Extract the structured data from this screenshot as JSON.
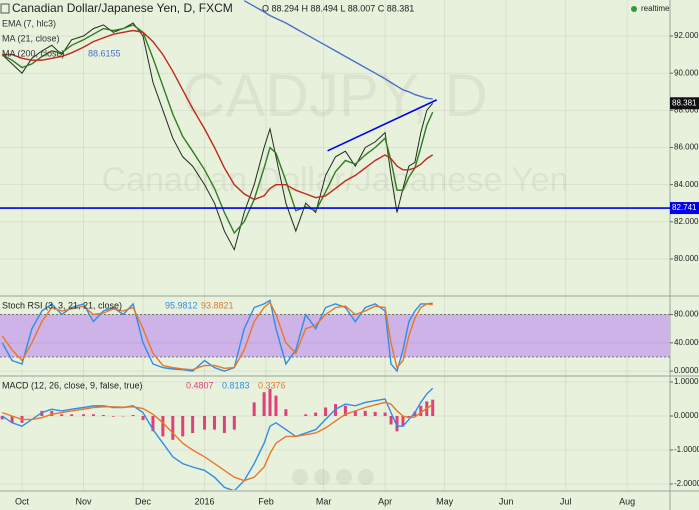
{
  "chart_data": [
    {
      "type": "line",
      "title": "Canadian Dollar/Japanese Yen, D, FXCM",
      "ohlc": "O 88.294 H 88.494 L 88.007 C 88.381",
      "status": "realtime",
      "watermark": [
        "CADJPY, D",
        "Canadian Dollar/Japanese Yen"
      ],
      "x": [
        -10,
        -5,
        0,
        5,
        10,
        15,
        20,
        25,
        31,
        36,
        41,
        46,
        51,
        56,
        61,
        66,
        71,
        76,
        81,
        86,
        92,
        97,
        102,
        107,
        112,
        117,
        122,
        125,
        128,
        133,
        138,
        143,
        148,
        153,
        158,
        163,
        168,
        173,
        178,
        183,
        186,
        189,
        192,
        195,
        198,
        201,
        204,
        207
      ],
      "ylim": [
        78.06,
        93.94
      ],
      "yticks": [
        {
          "value": 80,
          "label": "80.000"
        },
        {
          "value": 82,
          "label": "82.000"
        },
        {
          "value": 84,
          "label": "84.000"
        },
        {
          "value": 86,
          "label": "86.000"
        },
        {
          "value": 88,
          "label": "88.000"
        },
        {
          "value": 90,
          "label": "90.000"
        },
        {
          "value": 92,
          "label": "92.000"
        }
      ],
      "grid": true,
      "series": [
        {
          "color": "#1d2e1d",
          "values": [
            91.0,
            90.5,
            90.0,
            90.8,
            91.2,
            91.5,
            91.0,
            91.8,
            92.0,
            92.4,
            92.6,
            92.2,
            92.4,
            92.7,
            92.0,
            89.5,
            88.0,
            86.5,
            85.5,
            85.0,
            84.0,
            83.0,
            81.5,
            80.5,
            82.5,
            84.0,
            86.0,
            87.0,
            85.5,
            83.0,
            81.5,
            83.0,
            82.5,
            84.5,
            85.5,
            85.8,
            85.0,
            86.0,
            86.3,
            86.8,
            84.5,
            82.5,
            83.8,
            85.0,
            85.2,
            86.8,
            88.0,
            88.381
          ]
        },
        {
          "name": "EMA (7, hlc3)",
          "color": "#2f7d1f",
          "values": [
            91.0,
            90.7,
            90.3,
            90.5,
            90.9,
            91.2,
            91.1,
            91.5,
            91.8,
            92.1,
            92.4,
            92.3,
            92.4,
            92.6,
            92.2,
            90.8,
            89.3,
            87.8,
            86.6,
            85.8,
            84.8,
            83.8,
            82.5,
            81.4,
            82.0,
            83.2,
            84.9,
            86.0,
            85.7,
            84.2,
            82.6,
            82.8,
            82.6,
            83.6,
            84.7,
            85.3,
            85.1,
            85.6,
            86.0,
            86.5,
            85.3,
            83.7,
            83.7,
            84.4,
            84.9,
            86.0,
            87.2,
            87.9
          ]
        },
        {
          "name": "MA (21, close)",
          "color": "#c0291b",
          "values": [
            91.0,
            91.0,
            90.8,
            90.7,
            90.7,
            90.8,
            90.9,
            91.1,
            91.4,
            91.7,
            91.9,
            92.1,
            92.2,
            92.3,
            92.2,
            91.7,
            91.0,
            90.1,
            89.1,
            88.1,
            87.0,
            86.0,
            84.9,
            84.0,
            83.5,
            83.2,
            83.4,
            83.8,
            84.0,
            84.0,
            83.7,
            83.5,
            83.3,
            83.4,
            83.8,
            84.2,
            84.5,
            84.9,
            85.3,
            85.6,
            85.4,
            85.0,
            84.8,
            84.8,
            84.9,
            85.1,
            85.4,
            85.6
          ]
        },
        {
          "name": "MA (200, close)",
          "color": "#4a6fc9",
          "legend_value": "88.6155",
          "values": [
            null,
            null,
            null,
            null,
            null,
            null,
            null,
            null,
            null,
            null,
            null,
            null,
            null,
            null,
            null,
            null,
            null,
            null,
            null,
            null,
            null,
            null,
            null,
            null,
            93.9,
            93.6,
            93.3,
            93.1,
            92.95,
            92.7,
            92.4,
            92.1,
            91.8,
            91.5,
            91.2,
            90.9,
            90.6,
            90.3,
            90.0,
            89.7,
            89.5,
            89.3,
            89.1,
            89.0,
            88.85,
            88.75,
            88.65,
            88.6155
          ]
        }
      ],
      "hline": {
        "value": 82.741,
        "label": "82.741",
        "color": "#0000ee"
      },
      "trendline": {
        "x": [
          154,
          209
        ],
        "values": [
          85.82,
          88.56
        ],
        "color": "#0000ee"
      },
      "last_price": {
        "value": 88.381,
        "label": "88.381"
      }
    },
    {
      "type": "line",
      "title": "Stoch RSI (3, 3, 21, 21, close)",
      "x": [
        -10,
        -5,
        0,
        5,
        10,
        15,
        20,
        25,
        31,
        36,
        41,
        46,
        51,
        56,
        61,
        66,
        71,
        76,
        81,
        86,
        92,
        97,
        102,
        107,
        112,
        117,
        122,
        125,
        128,
        133,
        138,
        143,
        148,
        153,
        158,
        163,
        168,
        173,
        178,
        183,
        186,
        189,
        192,
        195,
        198,
        201,
        204,
        207
      ],
      "ylim": [
        -5.5,
        104.8
      ],
      "yticks": [
        {
          "value": 0,
          "label": "0.0000"
        },
        {
          "value": 40,
          "label": "40.0000"
        },
        {
          "value": 80,
          "label": "80.0000"
        }
      ],
      "band": [
        20,
        80
      ],
      "band_color": "#cdb3e8",
      "series": [
        {
          "color": "#2f8ee6",
          "legend_value": "95.9812",
          "values": [
            40,
            15,
            10,
            60,
            85,
            95,
            80,
            90,
            95,
            70,
            85,
            90,
            80,
            95,
            40,
            10,
            5,
            3,
            2,
            0,
            15,
            5,
            0,
            5,
            60,
            90,
            95,
            100,
            60,
            10,
            30,
            80,
            60,
            90,
            95,
            90,
            70,
            90,
            95,
            85,
            10,
            0,
            30,
            70,
            85,
            95,
            95,
            95.9812
          ]
        },
        {
          "color": "#e8782a",
          "legend_value": "93.8821",
          "values": [
            50,
            30,
            15,
            40,
            70,
            90,
            85,
            88,
            92,
            80,
            82,
            88,
            85,
            90,
            60,
            25,
            8,
            5,
            3,
            2,
            8,
            8,
            4,
            5,
            30,
            70,
            90,
            97,
            80,
            40,
            25,
            60,
            65,
            80,
            90,
            92,
            80,
            85,
            92,
            90,
            40,
            5,
            15,
            50,
            75,
            90,
            95,
            93.8821
          ]
        }
      ]
    },
    {
      "type": "line",
      "title": "MACD (12, 26, close, 9, false, true)",
      "x": [
        -10,
        -5,
        0,
        5,
        10,
        15,
        20,
        25,
        31,
        36,
        41,
        46,
        51,
        56,
        61,
        66,
        71,
        76,
        81,
        86,
        92,
        97,
        102,
        107,
        112,
        117,
        122,
        125,
        128,
        133,
        138,
        143,
        148,
        153,
        158,
        163,
        168,
        173,
        178,
        183,
        186,
        189,
        192,
        195,
        198,
        201,
        204,
        207
      ],
      "xlim": [
        -11.1,
        326.6
      ],
      "xticks": [
        {
          "value": 0,
          "label": "Oct"
        },
        {
          "value": 31,
          "label": "Nov"
        },
        {
          "value": 61,
          "label": "Dec"
        },
        {
          "value": 92,
          "label": "2016"
        },
        {
          "value": 123,
          "label": "Feb"
        },
        {
          "value": 152,
          "label": "Mar"
        },
        {
          "value": 183,
          "label": "Apr"
        },
        {
          "value": 213,
          "label": "May"
        },
        {
          "value": 244,
          "label": "Jun"
        },
        {
          "value": 274,
          "label": "Jul"
        },
        {
          "value": 305,
          "label": "Aug"
        }
      ],
      "ylim": [
        -2.176,
        1.147
      ],
      "yticks": [
        {
          "value": -2,
          "label": "-2.0000"
        },
        {
          "value": -1,
          "label": "-1.0000"
        },
        {
          "value": 0,
          "label": "0.0000"
        },
        {
          "value": 1,
          "label": "1.0000"
        }
      ],
      "series": [
        {
          "type": "bar",
          "color": "#e0407a",
          "legend_value": "0.4807",
          "values": [
            -0.1,
            -0.2,
            -0.2,
            0,
            0.15,
            0.15,
            0.05,
            0.05,
            0.05,
            0.05,
            0.03,
            -0.02,
            -0.01,
            0.03,
            -0.12,
            -0.45,
            -0.6,
            -0.7,
            -0.6,
            -0.5,
            -0.4,
            -0.4,
            -0.5,
            -0.4,
            0,
            0.4,
            0.7,
            0.8,
            0.6,
            0.2,
            0,
            0.05,
            0.1,
            0.25,
            0.35,
            0.3,
            0.15,
            0.15,
            0.12,
            0.1,
            -0.25,
            -0.45,
            -0.3,
            -0.05,
            0.13,
            0.3,
            0.43,
            0.4807
          ]
        },
        {
          "type": "line",
          "color": "#2f8ee6",
          "legend_value": "0.8183",
          "values": [
            0,
            -0.2,
            -0.3,
            -0.1,
            0.1,
            0.2,
            0.15,
            0.2,
            0.25,
            0.3,
            0.3,
            0.25,
            0.25,
            0.3,
            0.1,
            -0.4,
            -0.8,
            -1.2,
            -1.4,
            -1.5,
            -1.6,
            -1.8,
            -2.1,
            -2.2,
            -1.9,
            -1.4,
            -0.8,
            -0.3,
            -0.2,
            -0.4,
            -0.6,
            -0.5,
            -0.4,
            -0.1,
            0.2,
            0.35,
            0.3,
            0.4,
            0.45,
            0.5,
            0.1,
            -0.3,
            -0.3,
            -0.1,
            0.1,
            0.4,
            0.65,
            0.8183
          ]
        },
        {
          "type": "line",
          "color": "#e8782a",
          "legend_value": "0.3376",
          "values": [
            0.1,
            0,
            -0.1,
            -0.1,
            -0.05,
            0.05,
            0.1,
            0.15,
            0.2,
            0.25,
            0.27,
            0.27,
            0.26,
            0.27,
            0.22,
            0.05,
            -0.2,
            -0.5,
            -0.8,
            -1.0,
            -1.2,
            -1.4,
            -1.6,
            -1.8,
            -1.9,
            -1.8,
            -1.5,
            -1.1,
            -0.8,
            -0.6,
            -0.6,
            -0.55,
            -0.5,
            -0.35,
            -0.15,
            0.05,
            0.15,
            0.25,
            0.33,
            0.4,
            0.35,
            0.15,
            0,
            -0.05,
            -0.03,
            0.1,
            0.22,
            0.3376
          ]
        }
      ]
    }
  ]
}
